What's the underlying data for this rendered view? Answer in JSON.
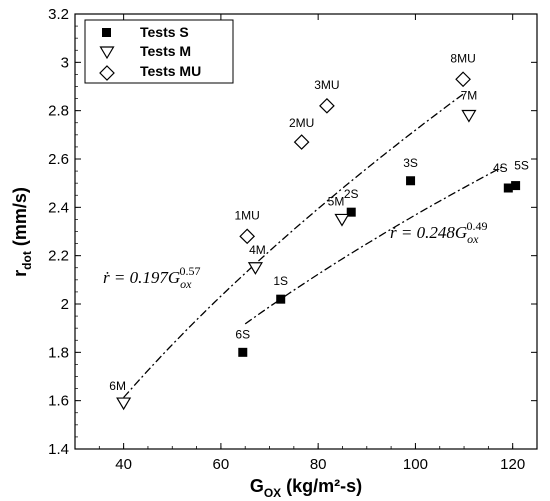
{
  "chart_data": {
    "type": "scatter",
    "xlabel": {
      "main": "G",
      "sub": "OX",
      "unit": " (kg/m²-s)"
    },
    "ylabel": {
      "main": "r",
      "sub": "dot",
      "unit": " (mm/s)"
    },
    "xlim": [
      30,
      125
    ],
    "ylim": [
      1.4,
      3.2
    ],
    "xticks": [
      "40",
      "60",
      "80",
      "100",
      "120"
    ],
    "yticks": [
      "1.4",
      "1.6",
      "1.8",
      "2",
      "2.2",
      "2.4",
      "2.6",
      "2.8",
      "3",
      "3.2"
    ],
    "grid": false,
    "legend_position": "top-left",
    "series": [
      {
        "name": "Tests S",
        "marker": "filled-square",
        "points": [
          {
            "label": "6S",
            "x": 64.5,
            "y": 1.8
          },
          {
            "label": "1S",
            "x": 72.3,
            "y": 2.02
          },
          {
            "label": "2S",
            "x": 86.8,
            "y": 2.38
          },
          {
            "label": "3S",
            "x": 99.0,
            "y": 2.51
          },
          {
            "label": "4S",
            "x": 119.1,
            "y": 2.48
          },
          {
            "label": "5S",
            "x": 120.6,
            "y": 2.49
          }
        ]
      },
      {
        "name": "Tests M",
        "marker": "open-triangle-down",
        "points": [
          {
            "label": "6M",
            "x": 40.0,
            "y": 1.59
          },
          {
            "label": "4M",
            "x": 67.1,
            "y": 2.15
          },
          {
            "label": "5M",
            "x": 84.9,
            "y": 2.35
          },
          {
            "label": "7M",
            "x": 111.0,
            "y": 2.78
          }
        ]
      },
      {
        "name": "Tests MU",
        "marker": "open-diamond",
        "points": [
          {
            "label": "1MU",
            "x": 65.4,
            "y": 2.28
          },
          {
            "label": "2MU",
            "x": 76.6,
            "y": 2.67
          },
          {
            "label": "3MU",
            "x": 81.8,
            "y": 2.82
          },
          {
            "label": "8MU",
            "x": 109.8,
            "y": 2.93
          }
        ]
      }
    ],
    "fits": [
      {
        "equation": {
          "lhs": "ṙ = 0.197",
          "base": "G",
          "sub": "ox",
          "exp": "0.57"
        },
        "coef": 0.197,
        "exponent": 0.57,
        "x_range": [
          40,
          110
        ]
      },
      {
        "equation": {
          "lhs": "ṙ = 0.248",
          "base": "G",
          "sub": "ox",
          "exp": "0.49"
        },
        "coef": 0.248,
        "exponent": 0.49,
        "x_range": [
          65,
          118
        ]
      }
    ]
  }
}
